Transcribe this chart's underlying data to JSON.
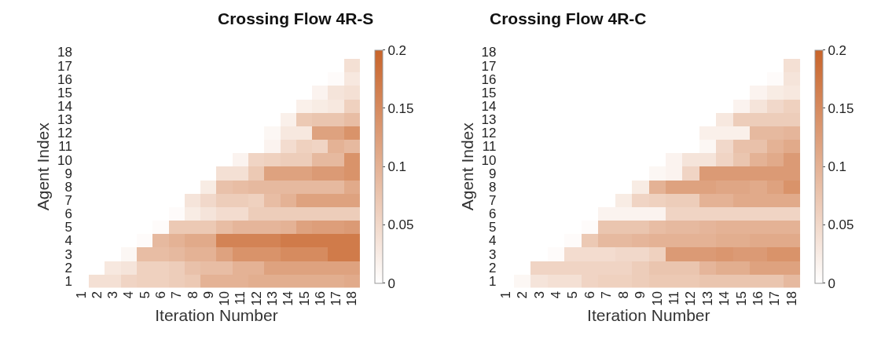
{
  "chart_data": [
    {
      "type": "heatmap",
      "title": "Crossing Flow 4R-S",
      "xlabel": "Iteration Number",
      "ylabel": "Agent Index",
      "categories": [
        "1",
        "2",
        "3",
        "4",
        "5",
        "6",
        "7",
        "8",
        "9",
        "10",
        "11",
        "12",
        "13",
        "14",
        "15",
        "16",
        "17",
        "18"
      ],
      "y_categories": [
        "18",
        "17",
        "16",
        "15",
        "14",
        "13",
        "12",
        "11",
        "10",
        "9",
        "8",
        "7",
        "6",
        "5",
        "4",
        "3",
        "2",
        "1"
      ],
      "clim": [
        0,
        0.2
      ],
      "cticks": [
        0,
        0.05,
        0.1,
        0.15,
        0.2
      ],
      "cells": [
        [
          null,
          null,
          null,
          null,
          null,
          null,
          null,
          null,
          null,
          null,
          null,
          null,
          null,
          null,
          null,
          null,
          null,
          null
        ],
        [
          null,
          null,
          null,
          null,
          null,
          null,
          null,
          null,
          null,
          null,
          null,
          null,
          null,
          null,
          null,
          null,
          null,
          0.04
        ],
        [
          null,
          null,
          null,
          null,
          null,
          null,
          null,
          null,
          null,
          null,
          null,
          null,
          null,
          null,
          null,
          null,
          0.005,
          0.03
        ],
        [
          null,
          null,
          null,
          null,
          null,
          null,
          null,
          null,
          null,
          null,
          null,
          null,
          null,
          null,
          null,
          0.015,
          0.035,
          0.04
        ],
        [
          null,
          null,
          null,
          null,
          null,
          null,
          null,
          null,
          null,
          null,
          null,
          null,
          null,
          null,
          0.02,
          0.025,
          0.03,
          0.06
        ],
        [
          null,
          null,
          null,
          null,
          null,
          null,
          null,
          null,
          null,
          null,
          null,
          null,
          null,
          0.02,
          0.07,
          0.075,
          0.075,
          0.085
        ],
        [
          null,
          null,
          null,
          null,
          null,
          null,
          null,
          null,
          null,
          null,
          null,
          null,
          0.01,
          0.03,
          0.03,
          0.12,
          0.12,
          0.14
        ],
        [
          null,
          null,
          null,
          null,
          null,
          null,
          null,
          null,
          null,
          null,
          null,
          0,
          0.015,
          0.045,
          0.06,
          0.055,
          0.1,
          0.09
        ],
        [
          null,
          null,
          null,
          null,
          null,
          null,
          null,
          null,
          null,
          null,
          0.015,
          0.055,
          0.06,
          0.065,
          0.065,
          0.09,
          0.09,
          0.14
        ],
        [
          null,
          null,
          null,
          null,
          null,
          null,
          null,
          null,
          null,
          0.04,
          0.04,
          0.07,
          0.12,
          0.12,
          0.12,
          0.13,
          0.13,
          0.14
        ],
        [
          null,
          null,
          null,
          null,
          null,
          null,
          null,
          null,
          0.025,
          0.08,
          0.085,
          0.09,
          0.09,
          0.09,
          0.09,
          0.09,
          0.09,
          0.11
        ],
        [
          null,
          null,
          null,
          null,
          null,
          null,
          null,
          0.035,
          0.05,
          0.065,
          0.065,
          0.06,
          0.085,
          0.1,
          0.12,
          0.12,
          0.12,
          0.12
        ],
        [
          null,
          null,
          null,
          null,
          null,
          null,
          0.005,
          0.025,
          0.035,
          0.045,
          0.045,
          0.065,
          0.065,
          0.065,
          0.065,
          0.065,
          0.065,
          0.065
        ],
        [
          null,
          null,
          null,
          null,
          null,
          0.005,
          0.07,
          0.07,
          0.07,
          0.085,
          0.095,
          0.095,
          0.095,
          0.1,
          0.12,
          0.125,
          0.125,
          0.13
        ],
        [
          null,
          null,
          null,
          null,
          0.005,
          0.09,
          0.1,
          0.11,
          0.11,
          0.16,
          0.16,
          0.16,
          0.16,
          0.17,
          0.17,
          0.17,
          0.17,
          0.17
        ],
        [
          null,
          null,
          null,
          0.01,
          0.085,
          0.085,
          0.09,
          0.1,
          0.1,
          0.12,
          0.14,
          0.14,
          0.14,
          0.15,
          0.15,
          0.15,
          0.17,
          0.17
        ],
        [
          null,
          null,
          0.03,
          0.035,
          0.06,
          0.06,
          0.065,
          0.08,
          0.085,
          0.085,
          0.1,
          0.1,
          0.12,
          0.12,
          0.12,
          0.12,
          0.12,
          0.12
        ],
        [
          null,
          0.04,
          0.04,
          0.055,
          0.06,
          0.06,
          0.065,
          0.07,
          0.1,
          0.1,
          0.1,
          0.105,
          0.105,
          0.105,
          0.105,
          0.105,
          0.105,
          0.11
        ]
      ]
    },
    {
      "type": "heatmap",
      "title": "Crossing Flow 4R-C",
      "xlabel": "Iteration Number",
      "ylabel": "Agent Index",
      "categories": [
        "1",
        "2",
        "3",
        "4",
        "5",
        "6",
        "7",
        "8",
        "9",
        "10",
        "11",
        "12",
        "13",
        "14",
        "15",
        "16",
        "17",
        "18"
      ],
      "y_categories": [
        "18",
        "17",
        "16",
        "15",
        "14",
        "13",
        "12",
        "11",
        "10",
        "9",
        "8",
        "7",
        "6",
        "5",
        "4",
        "3",
        "2",
        "1"
      ],
      "clim": [
        0,
        0.2
      ],
      "cticks": [
        0,
        0.05,
        0.1,
        0.15,
        0.2
      ],
      "cells": [
        [
          null,
          null,
          null,
          null,
          null,
          null,
          null,
          null,
          null,
          null,
          null,
          null,
          null,
          null,
          null,
          null,
          null,
          null
        ],
        [
          null,
          null,
          null,
          null,
          null,
          null,
          null,
          null,
          null,
          null,
          null,
          null,
          null,
          null,
          null,
          null,
          null,
          0.04
        ],
        [
          null,
          null,
          null,
          null,
          null,
          null,
          null,
          null,
          null,
          null,
          null,
          null,
          null,
          null,
          null,
          null,
          0.005,
          0.035
        ],
        [
          null,
          null,
          null,
          null,
          null,
          null,
          null,
          null,
          null,
          null,
          null,
          null,
          null,
          null,
          null,
          0.015,
          0.025,
          0.03
        ],
        [
          null,
          null,
          null,
          null,
          null,
          null,
          null,
          null,
          null,
          null,
          null,
          null,
          null,
          null,
          0.015,
          0.035,
          0.05,
          0.06
        ],
        [
          null,
          null,
          null,
          null,
          null,
          null,
          null,
          null,
          null,
          null,
          null,
          null,
          null,
          0.03,
          0.065,
          0.065,
          0.065,
          0.065
        ],
        [
          null,
          null,
          null,
          null,
          null,
          null,
          null,
          null,
          null,
          null,
          null,
          null,
          0.02,
          0.02,
          0.02,
          0.09,
          0.09,
          0.095
        ],
        [
          null,
          null,
          null,
          null,
          null,
          null,
          null,
          null,
          null,
          null,
          null,
          0,
          0.01,
          0.05,
          0.08,
          0.08,
          0.1,
          0.11
        ],
        [
          null,
          null,
          null,
          null,
          null,
          null,
          null,
          null,
          null,
          null,
          0.015,
          0.035,
          0.035,
          0.055,
          0.075,
          0.1,
          0.11,
          0.13
        ],
        [
          null,
          null,
          null,
          null,
          null,
          null,
          null,
          null,
          null,
          0.01,
          0.015,
          0.055,
          0.13,
          0.13,
          0.13,
          0.13,
          0.13,
          0.13
        ],
        [
          null,
          null,
          null,
          null,
          null,
          null,
          null,
          null,
          0.025,
          0.1,
          0.12,
          0.12,
          0.12,
          0.115,
          0.115,
          0.11,
          0.12,
          0.14
        ],
        [
          null,
          null,
          null,
          null,
          null,
          null,
          null,
          0.025,
          0.055,
          0.06,
          0.065,
          0.065,
          0.1,
          0.1,
          0.11,
          0.11,
          0.11,
          0.11
        ],
        [
          null,
          null,
          null,
          null,
          null,
          null,
          0.015,
          0.015,
          0.015,
          0.015,
          0.055,
          0.055,
          0.055,
          0.055,
          0.055,
          0.055,
          0.055,
          0.055
        ],
        [
          null,
          null,
          null,
          null,
          null,
          0.005,
          0.075,
          0.075,
          0.075,
          0.085,
          0.09,
          0.09,
          0.095,
          0.1,
          0.1,
          0.1,
          0.1,
          0.1
        ],
        [
          null,
          null,
          null,
          null,
          0.005,
          0.07,
          0.09,
          0.09,
          0.095,
          0.1,
          0.1,
          0.1,
          0.1,
          0.105,
          0.105,
          0.11,
          0.11,
          0.11
        ],
        [
          null,
          null,
          null,
          0.005,
          0.045,
          0.045,
          0.045,
          0.05,
          0.05,
          0.06,
          0.13,
          0.13,
          0.13,
          0.135,
          0.13,
          0.13,
          0.14,
          0.14
        ],
        [
          null,
          null,
          0.055,
          0.055,
          0.055,
          0.055,
          0.055,
          0.055,
          0.065,
          0.075,
          0.075,
          0.075,
          0.095,
          0.105,
          0.105,
          0.12,
          0.12,
          0.12
        ],
        [
          null,
          0.01,
          0.035,
          0.04,
          0.04,
          0.055,
          0.06,
          0.06,
          0.065,
          0.07,
          0.07,
          0.07,
          0.075,
          0.075,
          0.075,
          0.075,
          0.075,
          0.09
        ]
      ]
    }
  ]
}
